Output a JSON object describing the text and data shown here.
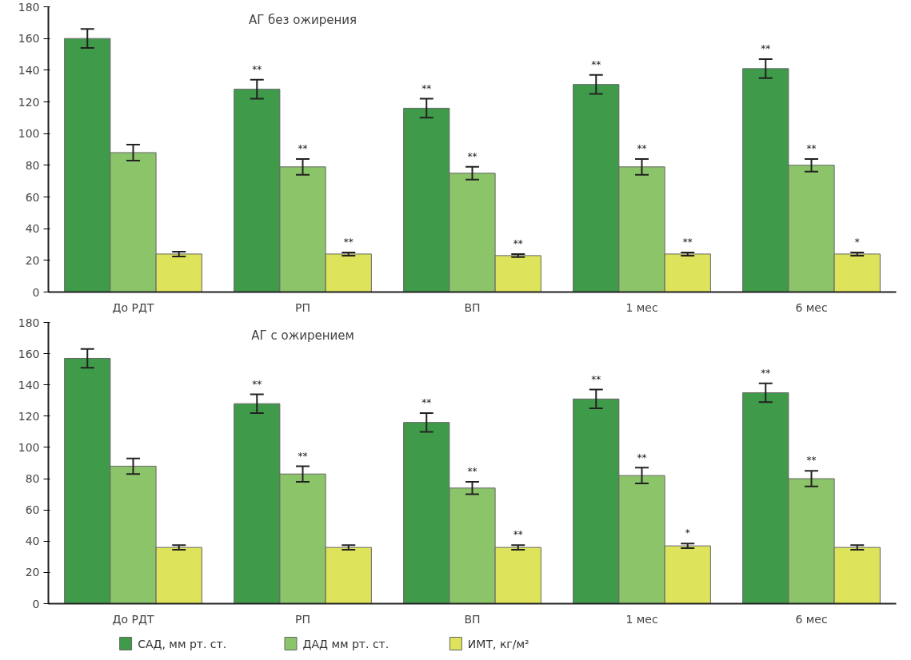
{
  "chart_data": [
    {
      "type": "bar",
      "title": "АГ без ожирения",
      "categories": [
        "До РДТ",
        "РП",
        "ВП",
        "1 мес",
        "6 мес"
      ],
      "ylim": [
        0,
        180
      ],
      "yticks": [
        0,
        20,
        40,
        60,
        80,
        100,
        120,
        140,
        160,
        180
      ],
      "grid": false,
      "legend": false,
      "series": [
        {
          "color": "#3f9a4a",
          "values": [
            160,
            128,
            116,
            131,
            141
          ],
          "errors": [
            6,
            6,
            6,
            6,
            6
          ],
          "value_labels": [
            null,
            "**",
            "**",
            "**",
            "**"
          ]
        },
        {
          "color": "#8cc46a",
          "values": [
            88,
            79,
            75,
            79,
            80
          ],
          "errors": [
            5,
            5,
            4,
            5,
            4
          ],
          "value_labels": [
            null,
            "**",
            "**",
            "**",
            "**"
          ]
        },
        {
          "color": "#dde35a",
          "values": [
            24,
            24,
            23,
            24,
            24
          ],
          "errors": [
            1.5,
            1,
            1,
            1,
            1
          ],
          "value_labels": [
            null,
            "**",
            "**",
            "**",
            "*"
          ]
        }
      ]
    },
    {
      "type": "bar",
      "title": "АГ с ожирением",
      "categories": [
        "До РДТ",
        "РП",
        "ВП",
        "1 мес",
        "6 мес"
      ],
      "ylim": [
        0,
        180
      ],
      "yticks": [
        0,
        20,
        40,
        60,
        80,
        100,
        120,
        140,
        160,
        180
      ],
      "grid": false,
      "legend": "bottom",
      "series": [
        {
          "name": "САД, мм рт. ст.",
          "color": "#3f9a4a",
          "values": [
            157,
            128,
            116,
            131,
            135
          ],
          "errors": [
            6,
            6,
            6,
            6,
            6
          ],
          "value_labels": [
            null,
            "**",
            "**",
            "**",
            "**"
          ]
        },
        {
          "name": "ДАД мм рт. ст.",
          "color": "#8cc46a",
          "values": [
            88,
            83,
            74,
            82,
            80
          ],
          "errors": [
            5,
            5,
            4,
            5,
            5
          ],
          "value_labels": [
            null,
            "**",
            "**",
            "**",
            "**"
          ]
        },
        {
          "name": "ИМТ, кг/м²",
          "color": "#dde35a",
          "values": [
            36,
            36,
            36,
            37,
            36
          ],
          "errors": [
            1.5,
            1.5,
            1.5,
            1.5,
            1.5
          ],
          "value_labels": [
            null,
            null,
            "**",
            "*",
            null
          ]
        }
      ]
    }
  ]
}
